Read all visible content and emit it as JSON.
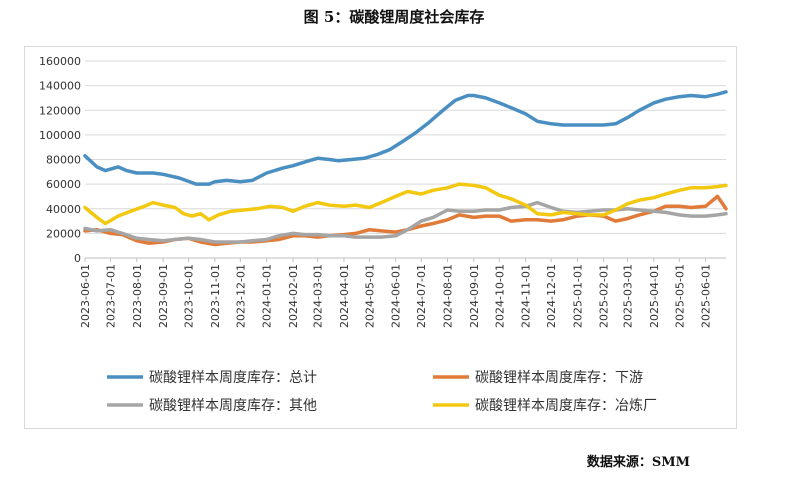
{
  "title": "图 5：碳酸锂周度社会库存",
  "source": "数据来源：SMM",
  "chart_data": {
    "type": "line",
    "title": "图 5：碳酸锂周度社会库存",
    "xlabel": "",
    "ylabel": "",
    "ylim": [
      0,
      160000
    ],
    "yticks": [
      0,
      20000,
      40000,
      60000,
      80000,
      100000,
      120000,
      140000,
      160000
    ],
    "ytick_labels": [
      "0",
      "20000",
      "40000",
      "60000",
      "80000",
      "100000",
      "120000",
      "140000",
      "160000"
    ],
    "xticks": [
      "2023-06-01",
      "2023-07-01",
      "2023-08-01",
      "2023-09-01",
      "2023-10-01",
      "2023-11-01",
      "2023-12-01",
      "2024-01-01",
      "2024-02-01",
      "2024-03-01",
      "2024-04-01",
      "2024-05-01",
      "2024-06-01",
      "2024-07-01",
      "2024-08-01",
      "2024-09-01",
      "2024-10-01",
      "2024-11-01",
      "2024-12-01",
      "2025-01-01",
      "2025-02-01",
      "2025-03-01",
      "2025-04-01",
      "2025-05-01",
      "2025-06-01"
    ],
    "grid": "horizontal",
    "legend_position": "bottom",
    "series": [
      {
        "name": "碳酸锂样本周度库存：总计",
        "color": "#4a8fc2",
        "points": [
          [
            "2023-06-01",
            83000
          ],
          [
            "2023-06-15",
            74000
          ],
          [
            "2023-06-25",
            71000
          ],
          [
            "2023-07-10",
            74000
          ],
          [
            "2023-07-20",
            71000
          ],
          [
            "2023-08-01",
            69000
          ],
          [
            "2023-08-20",
            69000
          ],
          [
            "2023-09-01",
            68000
          ],
          [
            "2023-09-20",
            65000
          ],
          [
            "2023-10-10",
            60000
          ],
          [
            "2023-10-25",
            60000
          ],
          [
            "2023-11-01",
            62000
          ],
          [
            "2023-11-15",
            63000
          ],
          [
            "2023-12-01",
            62000
          ],
          [
            "2023-12-15",
            63000
          ],
          [
            "2024-01-01",
            69000
          ],
          [
            "2024-01-20",
            73000
          ],
          [
            "2024-02-01",
            75000
          ],
          [
            "2024-02-20",
            79000
          ],
          [
            "2024-03-01",
            81000
          ],
          [
            "2024-03-15",
            80000
          ],
          [
            "2024-03-25",
            79000
          ],
          [
            "2024-04-10",
            80000
          ],
          [
            "2024-04-25",
            81000
          ],
          [
            "2024-05-10",
            84000
          ],
          [
            "2024-05-25",
            88000
          ],
          [
            "2024-06-10",
            95000
          ],
          [
            "2024-06-25",
            102000
          ],
          [
            "2024-07-10",
            110000
          ],
          [
            "2024-07-25",
            119000
          ],
          [
            "2024-08-10",
            128000
          ],
          [
            "2024-08-25",
            132000
          ],
          [
            "2024-09-01",
            132000
          ],
          [
            "2024-09-15",
            130000
          ],
          [
            "2024-10-01",
            126000
          ],
          [
            "2024-10-15",
            122000
          ],
          [
            "2024-11-01",
            117000
          ],
          [
            "2024-11-15",
            111000
          ],
          [
            "2024-12-01",
            109000
          ],
          [
            "2024-12-15",
            108000
          ],
          [
            "2025-01-01",
            108000
          ],
          [
            "2025-01-15",
            108000
          ],
          [
            "2025-02-01",
            108000
          ],
          [
            "2025-02-15",
            109000
          ],
          [
            "2025-03-01",
            114000
          ],
          [
            "2025-03-15",
            120000
          ],
          [
            "2025-04-01",
            126000
          ],
          [
            "2025-04-15",
            129000
          ],
          [
            "2025-05-01",
            131000
          ],
          [
            "2025-05-15",
            132000
          ],
          [
            "2025-06-01",
            131000
          ],
          [
            "2025-06-15",
            133000
          ],
          [
            "2025-06-25",
            135000
          ]
        ]
      },
      {
        "name": "碳酸锂样本周度库存：下游",
        "color": "#e07b39",
        "points": [
          [
            "2023-06-01",
            22000
          ],
          [
            "2023-06-15",
            23000
          ],
          [
            "2023-07-01",
            20000
          ],
          [
            "2023-07-15",
            19000
          ],
          [
            "2023-08-01",
            14000
          ],
          [
            "2023-08-15",
            12000
          ],
          [
            "2023-09-01",
            13000
          ],
          [
            "2023-09-15",
            15000
          ],
          [
            "2023-10-01",
            16000
          ],
          [
            "2023-10-15",
            13000
          ],
          [
            "2023-11-01",
            11000
          ],
          [
            "2023-11-15",
            12000
          ],
          [
            "2023-12-01",
            13000
          ],
          [
            "2023-12-15",
            13000
          ],
          [
            "2024-01-01",
            14000
          ],
          [
            "2024-01-15",
            15000
          ],
          [
            "2024-02-01",
            18000
          ],
          [
            "2024-02-15",
            18000
          ],
          [
            "2024-03-01",
            17000
          ],
          [
            "2024-03-15",
            18000
          ],
          [
            "2024-04-01",
            19000
          ],
          [
            "2024-04-15",
            20000
          ],
          [
            "2024-05-01",
            23000
          ],
          [
            "2024-05-15",
            22000
          ],
          [
            "2024-06-01",
            21000
          ],
          [
            "2024-06-15",
            23000
          ],
          [
            "2024-07-01",
            26000
          ],
          [
            "2024-07-15",
            28000
          ],
          [
            "2024-08-01",
            31000
          ],
          [
            "2024-08-15",
            35000
          ],
          [
            "2024-09-01",
            33000
          ],
          [
            "2024-09-15",
            34000
          ],
          [
            "2024-10-01",
            34000
          ],
          [
            "2024-10-15",
            30000
          ],
          [
            "2024-11-01",
            31000
          ],
          [
            "2024-11-15",
            31000
          ],
          [
            "2024-12-01",
            30000
          ],
          [
            "2024-12-15",
            31000
          ],
          [
            "2025-01-01",
            34000
          ],
          [
            "2025-01-15",
            35000
          ],
          [
            "2025-02-01",
            34000
          ],
          [
            "2025-02-15",
            30000
          ],
          [
            "2025-03-01",
            32000
          ],
          [
            "2025-03-15",
            35000
          ],
          [
            "2025-04-01",
            38000
          ],
          [
            "2025-04-15",
            42000
          ],
          [
            "2025-05-01",
            42000
          ],
          [
            "2025-05-15",
            41000
          ],
          [
            "2025-06-01",
            42000
          ],
          [
            "2025-06-15",
            50000
          ],
          [
            "2025-06-25",
            40000
          ]
        ]
      },
      {
        "name": "碳酸锂样本周度库存：其他",
        "color": "#a5a5a5",
        "points": [
          [
            "2023-06-01",
            24000
          ],
          [
            "2023-06-15",
            22000
          ],
          [
            "2023-07-01",
            23000
          ],
          [
            "2023-07-15",
            20000
          ],
          [
            "2023-08-01",
            16000
          ],
          [
            "2023-08-15",
            15000
          ],
          [
            "2023-09-01",
            14000
          ],
          [
            "2023-09-15",
            15000
          ],
          [
            "2023-10-01",
            16000
          ],
          [
            "2023-10-15",
            15000
          ],
          [
            "2023-11-01",
            13000
          ],
          [
            "2023-11-15",
            13000
          ],
          [
            "2023-12-01",
            13000
          ],
          [
            "2023-12-15",
            14000
          ],
          [
            "2024-01-01",
            15000
          ],
          [
            "2024-01-15",
            18000
          ],
          [
            "2024-02-01",
            20000
          ],
          [
            "2024-02-15",
            19000
          ],
          [
            "2024-03-01",
            19000
          ],
          [
            "2024-03-15",
            18000
          ],
          [
            "2024-04-01",
            18000
          ],
          [
            "2024-04-15",
            17000
          ],
          [
            "2024-05-01",
            17000
          ],
          [
            "2024-05-15",
            17000
          ],
          [
            "2024-06-01",
            18000
          ],
          [
            "2024-06-15",
            23000
          ],
          [
            "2024-07-01",
            30000
          ],
          [
            "2024-07-15",
            33000
          ],
          [
            "2024-08-01",
            39000
          ],
          [
            "2024-08-15",
            38000
          ],
          [
            "2024-09-01",
            38000
          ],
          [
            "2024-09-15",
            39000
          ],
          [
            "2024-10-01",
            39000
          ],
          [
            "2024-10-15",
            41000
          ],
          [
            "2024-11-01",
            42000
          ],
          [
            "2024-11-15",
            45000
          ],
          [
            "2024-12-01",
            41000
          ],
          [
            "2024-12-15",
            38000
          ],
          [
            "2025-01-01",
            37000
          ],
          [
            "2025-01-15",
            38000
          ],
          [
            "2025-02-01",
            39000
          ],
          [
            "2025-02-15",
            39000
          ],
          [
            "2025-03-01",
            40000
          ],
          [
            "2025-03-15",
            39000
          ],
          [
            "2025-04-01",
            38000
          ],
          [
            "2025-04-15",
            37000
          ],
          [
            "2025-05-01",
            35000
          ],
          [
            "2025-05-15",
            34000
          ],
          [
            "2025-06-01",
            34000
          ],
          [
            "2025-06-15",
            35000
          ],
          [
            "2025-06-25",
            36000
          ]
        ]
      },
      {
        "name": "碳酸锂样本周度库存：冶炼厂",
        "color": "#f2c811",
        "points": [
          [
            "2023-06-01",
            41000
          ],
          [
            "2023-06-15",
            33000
          ],
          [
            "2023-06-25",
            28000
          ],
          [
            "2023-07-10",
            34000
          ],
          [
            "2023-07-25",
            38000
          ],
          [
            "2023-08-10",
            42000
          ],
          [
            "2023-08-20",
            45000
          ],
          [
            "2023-09-01",
            43000
          ],
          [
            "2023-09-15",
            41000
          ],
          [
            "2023-09-25",
            36000
          ],
          [
            "2023-10-05",
            34000
          ],
          [
            "2023-10-15",
            36000
          ],
          [
            "2023-10-25",
            31000
          ],
          [
            "2023-11-05",
            35000
          ],
          [
            "2023-11-20",
            38000
          ],
          [
            "2023-12-05",
            39000
          ],
          [
            "2023-12-20",
            40000
          ],
          [
            "2024-01-05",
            42000
          ],
          [
            "2024-01-20",
            41000
          ],
          [
            "2024-02-01",
            38000
          ],
          [
            "2024-02-15",
            42000
          ],
          [
            "2024-03-01",
            45000
          ],
          [
            "2024-03-15",
            43000
          ],
          [
            "2024-04-01",
            42000
          ],
          [
            "2024-04-15",
            43000
          ],
          [
            "2024-05-01",
            41000
          ],
          [
            "2024-05-15",
            45000
          ],
          [
            "2024-06-01",
            50000
          ],
          [
            "2024-06-15",
            54000
          ],
          [
            "2024-07-01",
            52000
          ],
          [
            "2024-07-15",
            55000
          ],
          [
            "2024-08-01",
            57000
          ],
          [
            "2024-08-15",
            60000
          ],
          [
            "2024-09-01",
            59000
          ],
          [
            "2024-09-15",
            57000
          ],
          [
            "2024-10-01",
            51000
          ],
          [
            "2024-10-15",
            48000
          ],
          [
            "2024-11-01",
            43000
          ],
          [
            "2024-11-15",
            36000
          ],
          [
            "2024-12-01",
            35000
          ],
          [
            "2024-12-15",
            37000
          ],
          [
            "2025-01-01",
            36000
          ],
          [
            "2025-01-15",
            35000
          ],
          [
            "2025-02-01",
            35000
          ],
          [
            "2025-02-15",
            39000
          ],
          [
            "2025-03-01",
            44000
          ],
          [
            "2025-03-15",
            47000
          ],
          [
            "2025-04-01",
            49000
          ],
          [
            "2025-04-15",
            52000
          ],
          [
            "2025-05-01",
            55000
          ],
          [
            "2025-05-15",
            57000
          ],
          [
            "2025-06-01",
            57000
          ],
          [
            "2025-06-15",
            58000
          ],
          [
            "2025-06-25",
            59000
          ]
        ]
      }
    ]
  }
}
